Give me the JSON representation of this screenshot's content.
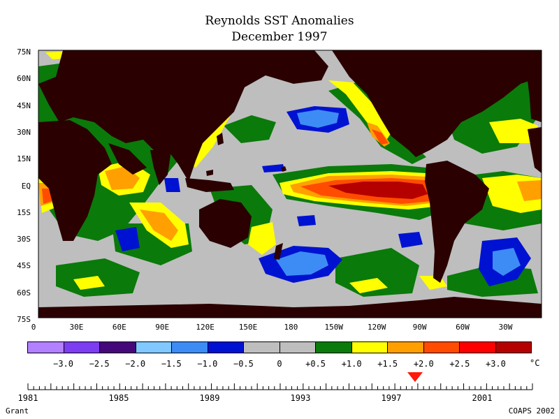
{
  "title": "Reynolds SST Anomalies",
  "subtitle": "December 1997",
  "latitude_labels": [
    "75N",
    "60N",
    "45N",
    "30N",
    "15N",
    "EQ",
    "15S",
    "30S",
    "45S",
    "60S",
    "75S"
  ],
  "longitude_labels": [
    "0",
    "30E",
    "60E",
    "90E",
    "120E",
    "150E",
    "180",
    "150W",
    "120W",
    "90W",
    "60W",
    "30W"
  ],
  "legend": {
    "colors": [
      "#b380ff",
      "#7d3df0",
      "#45087a",
      "#80c8ff",
      "#3d8cf5",
      "#0012d1",
      "#bebebe",
      "#bebebe",
      "#0a7a0a",
      "#ffff00",
      "#ffa000",
      "#ff4c00",
      "#ff0000",
      "#b50000"
    ],
    "labels": [
      "−3.0",
      "−2.5",
      "−2.0",
      "−1.5",
      "−1.0",
      "−0.5",
      "0",
      "+0.5",
      "+1.0",
      "+1.5",
      "+2.0",
      "+2.5",
      "+3.0"
    ],
    "unit": "°C"
  },
  "timeline": {
    "years": [
      "1981",
      "1985",
      "1989",
      "1993",
      "1997",
      "2001"
    ],
    "selected": "December 1997"
  },
  "author": "Grant",
  "credit": "COAPS 2002",
  "colors": {
    "land": "#2a0000",
    "ocean_neutral": "#bebebe",
    "warm_core": "#b50000"
  }
}
